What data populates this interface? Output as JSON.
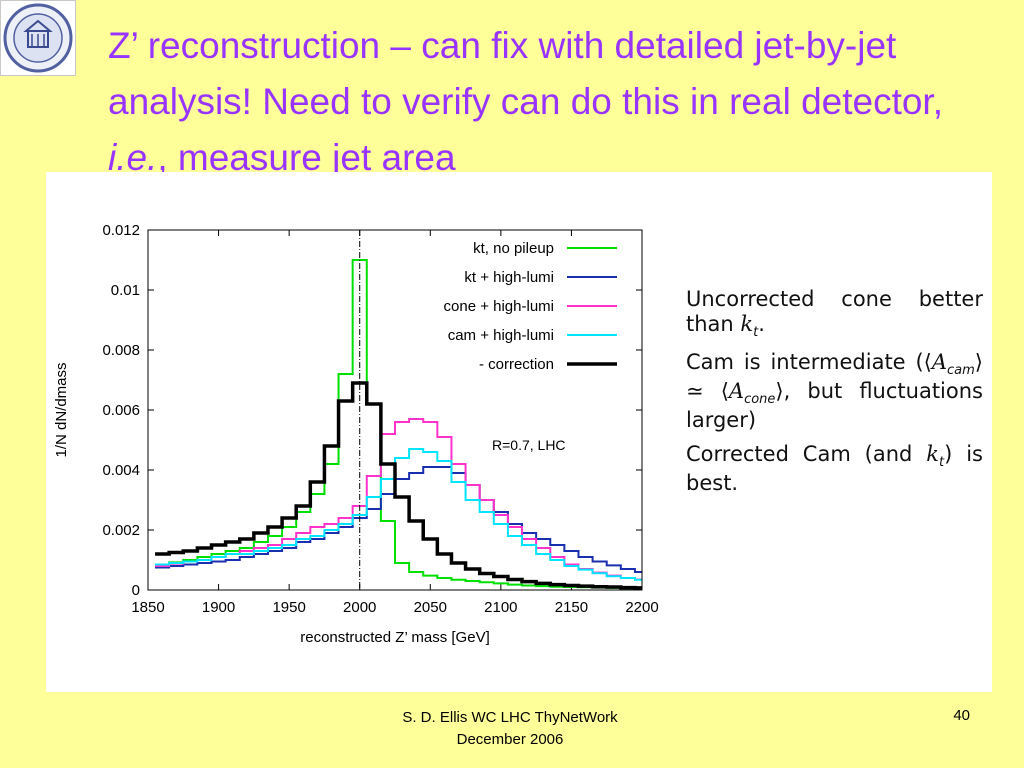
{
  "slide": {
    "title_part1": "Z’ reconstruction – can fix with detailed jet-by-jet analysis!  Need to verify can do this in real detector, ",
    "title_italic": "i.e.",
    "title_part2": ", measure jet area",
    "notes": {
      "p1_text": "Uncorrected cone better than ",
      "p1_k": "k",
      "p1_sub": "t",
      "p1_end": ".",
      "p2_a": "Cam is intermediate (⟨",
      "p2_A1": "A",
      "p2_sub1": "cam",
      "p2_b": "⟩ ≃ ⟨",
      "p2_A2": "A",
      "p2_sub2": "cone",
      "p2_c": "⟩, but fluctuations larger)",
      "p3_a": "Corrected Cam (and ",
      "p3_k": "k",
      "p3_sub": "t",
      "p3_b": ") is best."
    },
    "footer_line1": "S. D. Ellis   WC LHC ThyNetWork",
    "footer_line2": "December 2006",
    "page_number": "40",
    "logo_icon": "university-seal-icon"
  },
  "chart_data": {
    "type": "line",
    "step": true,
    "xlabel": "reconstructed Z’ mass [GeV]",
    "ylabel": "1/N dN/dmass",
    "xlim": [
      1850,
      2200
    ],
    "ylim": [
      0,
      0.012
    ],
    "xticks": [
      1850,
      1900,
      1950,
      2000,
      2050,
      2100,
      2150,
      2200
    ],
    "xtick_labels": [
      "1850",
      "1900",
      "1950",
      "2000",
      "2050",
      "2100",
      "2150",
      "2200"
    ],
    "yticks": [
      0,
      0.002,
      0.004,
      0.006,
      0.008,
      0.01,
      0.012
    ],
    "ytick_labels": [
      "0",
      "0.002",
      "0.004",
      "0.006",
      "0.008",
      "0.01",
      "0.012"
    ],
    "annotation": "R=0.7, LHC",
    "reference_line_x": 2000,
    "bin_edges": [
      1855,
      1865,
      1875,
      1885,
      1895,
      1905,
      1915,
      1925,
      1935,
      1945,
      1955,
      1965,
      1975,
      1985,
      1995,
      2005,
      2015,
      2025,
      2035,
      2045,
      2055,
      2065,
      2075,
      2085,
      2095,
      2105,
      2115,
      2125,
      2135,
      2145,
      2155,
      2165,
      2175,
      2185,
      2195,
      2200
    ],
    "legend_position": "top-right",
    "series": [
      {
        "name": "kt, no pileup",
        "color": "#00e000",
        "width": 2,
        "values": [
          0.00085,
          0.00092,
          0.001,
          0.0011,
          0.0012,
          0.0013,
          0.0014,
          0.0016,
          0.0018,
          0.0021,
          0.0026,
          0.0032,
          0.0042,
          0.0072,
          0.011,
          0.0062,
          0.0023,
          0.0009,
          0.0006,
          0.00048,
          0.0004,
          0.00034,
          0.0003,
          0.00026,
          0.00022,
          0.00018,
          0.00015,
          0.00013,
          0.00011,
          0.0001,
          9e-05,
          8e-05,
          7e-05,
          6e-05,
          5e-05
        ]
      },
      {
        "name": "kt + high-lumi",
        "color": "#1a2fb0",
        "width": 2,
        "values": [
          0.00075,
          0.0008,
          0.00085,
          0.0009,
          0.00095,
          0.001,
          0.0011,
          0.0012,
          0.0013,
          0.0014,
          0.0016,
          0.0017,
          0.0019,
          0.0021,
          0.0024,
          0.0027,
          0.0032,
          0.0037,
          0.0039,
          0.0041,
          0.0041,
          0.0039,
          0.0035,
          0.003,
          0.0026,
          0.0022,
          0.0019,
          0.0017,
          0.0015,
          0.0013,
          0.0011,
          0.00095,
          0.00082,
          0.0007,
          0.0006
        ]
      },
      {
        "name": "cone + high-lumi",
        "color": "#ff33cc",
        "width": 2,
        "values": [
          0.0008,
          0.00088,
          0.00095,
          0.001,
          0.0011,
          0.0012,
          0.0013,
          0.0014,
          0.0015,
          0.0017,
          0.0019,
          0.0021,
          0.0022,
          0.0024,
          0.0028,
          0.0038,
          0.0052,
          0.0056,
          0.0057,
          0.0056,
          0.0051,
          0.0042,
          0.0035,
          0.003,
          0.0025,
          0.0021,
          0.0017,
          0.0014,
          0.0011,
          0.00085,
          0.0007,
          0.00058,
          0.00048,
          0.0004,
          0.00035
        ]
      },
      {
        "name": "cam + high-lumi",
        "color": "#00e5ff",
        "width": 2,
        "values": [
          0.00085,
          0.0009,
          0.00095,
          0.001,
          0.0011,
          0.0012,
          0.0012,
          0.0013,
          0.0014,
          0.0015,
          0.0017,
          0.0018,
          0.002,
          0.0022,
          0.0025,
          0.0031,
          0.0037,
          0.0044,
          0.0047,
          0.0046,
          0.0043,
          0.0036,
          0.003,
          0.0026,
          0.0022,
          0.0018,
          0.0015,
          0.0012,
          0.001,
          0.0008,
          0.00068,
          0.00056,
          0.00046,
          0.0004,
          0.00034
        ]
      },
      {
        "name": "- correction",
        "color": "#000000",
        "width": 3.5,
        "values": [
          0.0012,
          0.00125,
          0.0013,
          0.0014,
          0.0015,
          0.0016,
          0.0017,
          0.0019,
          0.0021,
          0.0024,
          0.0028,
          0.0036,
          0.0048,
          0.0063,
          0.0069,
          0.0062,
          0.0042,
          0.0031,
          0.0023,
          0.0017,
          0.0012,
          0.0009,
          0.0007,
          0.00055,
          0.00045,
          0.00035,
          0.00028,
          0.00022,
          0.00018,
          0.00015,
          0.00013,
          0.00011,
          0.0001,
          8e-05,
          7e-05
        ]
      }
    ]
  }
}
